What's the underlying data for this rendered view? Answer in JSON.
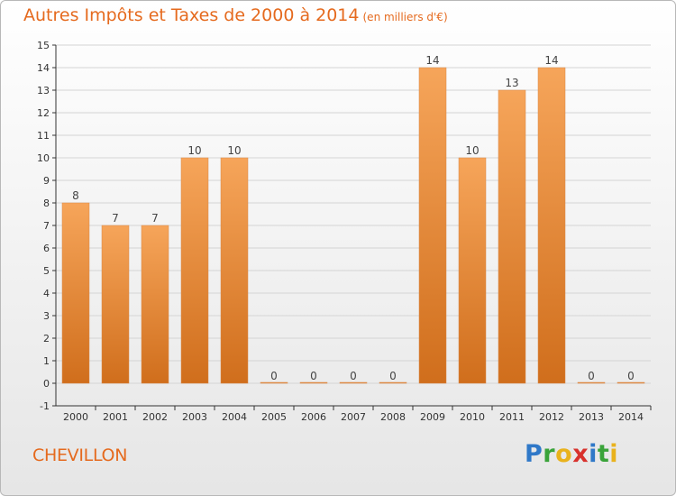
{
  "header": {
    "title": "Autres Impôts et Taxes de 2000 à 2014",
    "unit": "(en milliers d'€)"
  },
  "footer": {
    "commune": "CHEVILLON",
    "brand": "Proxiti",
    "brand_icon": "proxiti-logo"
  },
  "colors": {
    "bar_top": "#f6a55a",
    "bar_bottom": "#d06e1c",
    "title": "#e56a1e",
    "grid": "#d4d4d4",
    "axis": "#333333"
  },
  "chart_data": {
    "type": "bar",
    "title": "Autres Impôts et Taxes de 2000 à 2014",
    "subtitle": "(en milliers d'€)",
    "xlabel": "",
    "ylabel": "",
    "categories": [
      "2000",
      "2001",
      "2002",
      "2003",
      "2004",
      "2005",
      "2006",
      "2007",
      "2008",
      "2009",
      "2010",
      "2011",
      "2012",
      "2013",
      "2014"
    ],
    "values": [
      8,
      7,
      7,
      10,
      10,
      0,
      0,
      0,
      0,
      14,
      10,
      13,
      14,
      0,
      0
    ],
    "ylim": [
      -1,
      15
    ],
    "yticks": [
      -1,
      0,
      1,
      2,
      3,
      4,
      5,
      6,
      7,
      8,
      9,
      10,
      11,
      12,
      13,
      14,
      15
    ],
    "grid": true,
    "legend": "none"
  }
}
